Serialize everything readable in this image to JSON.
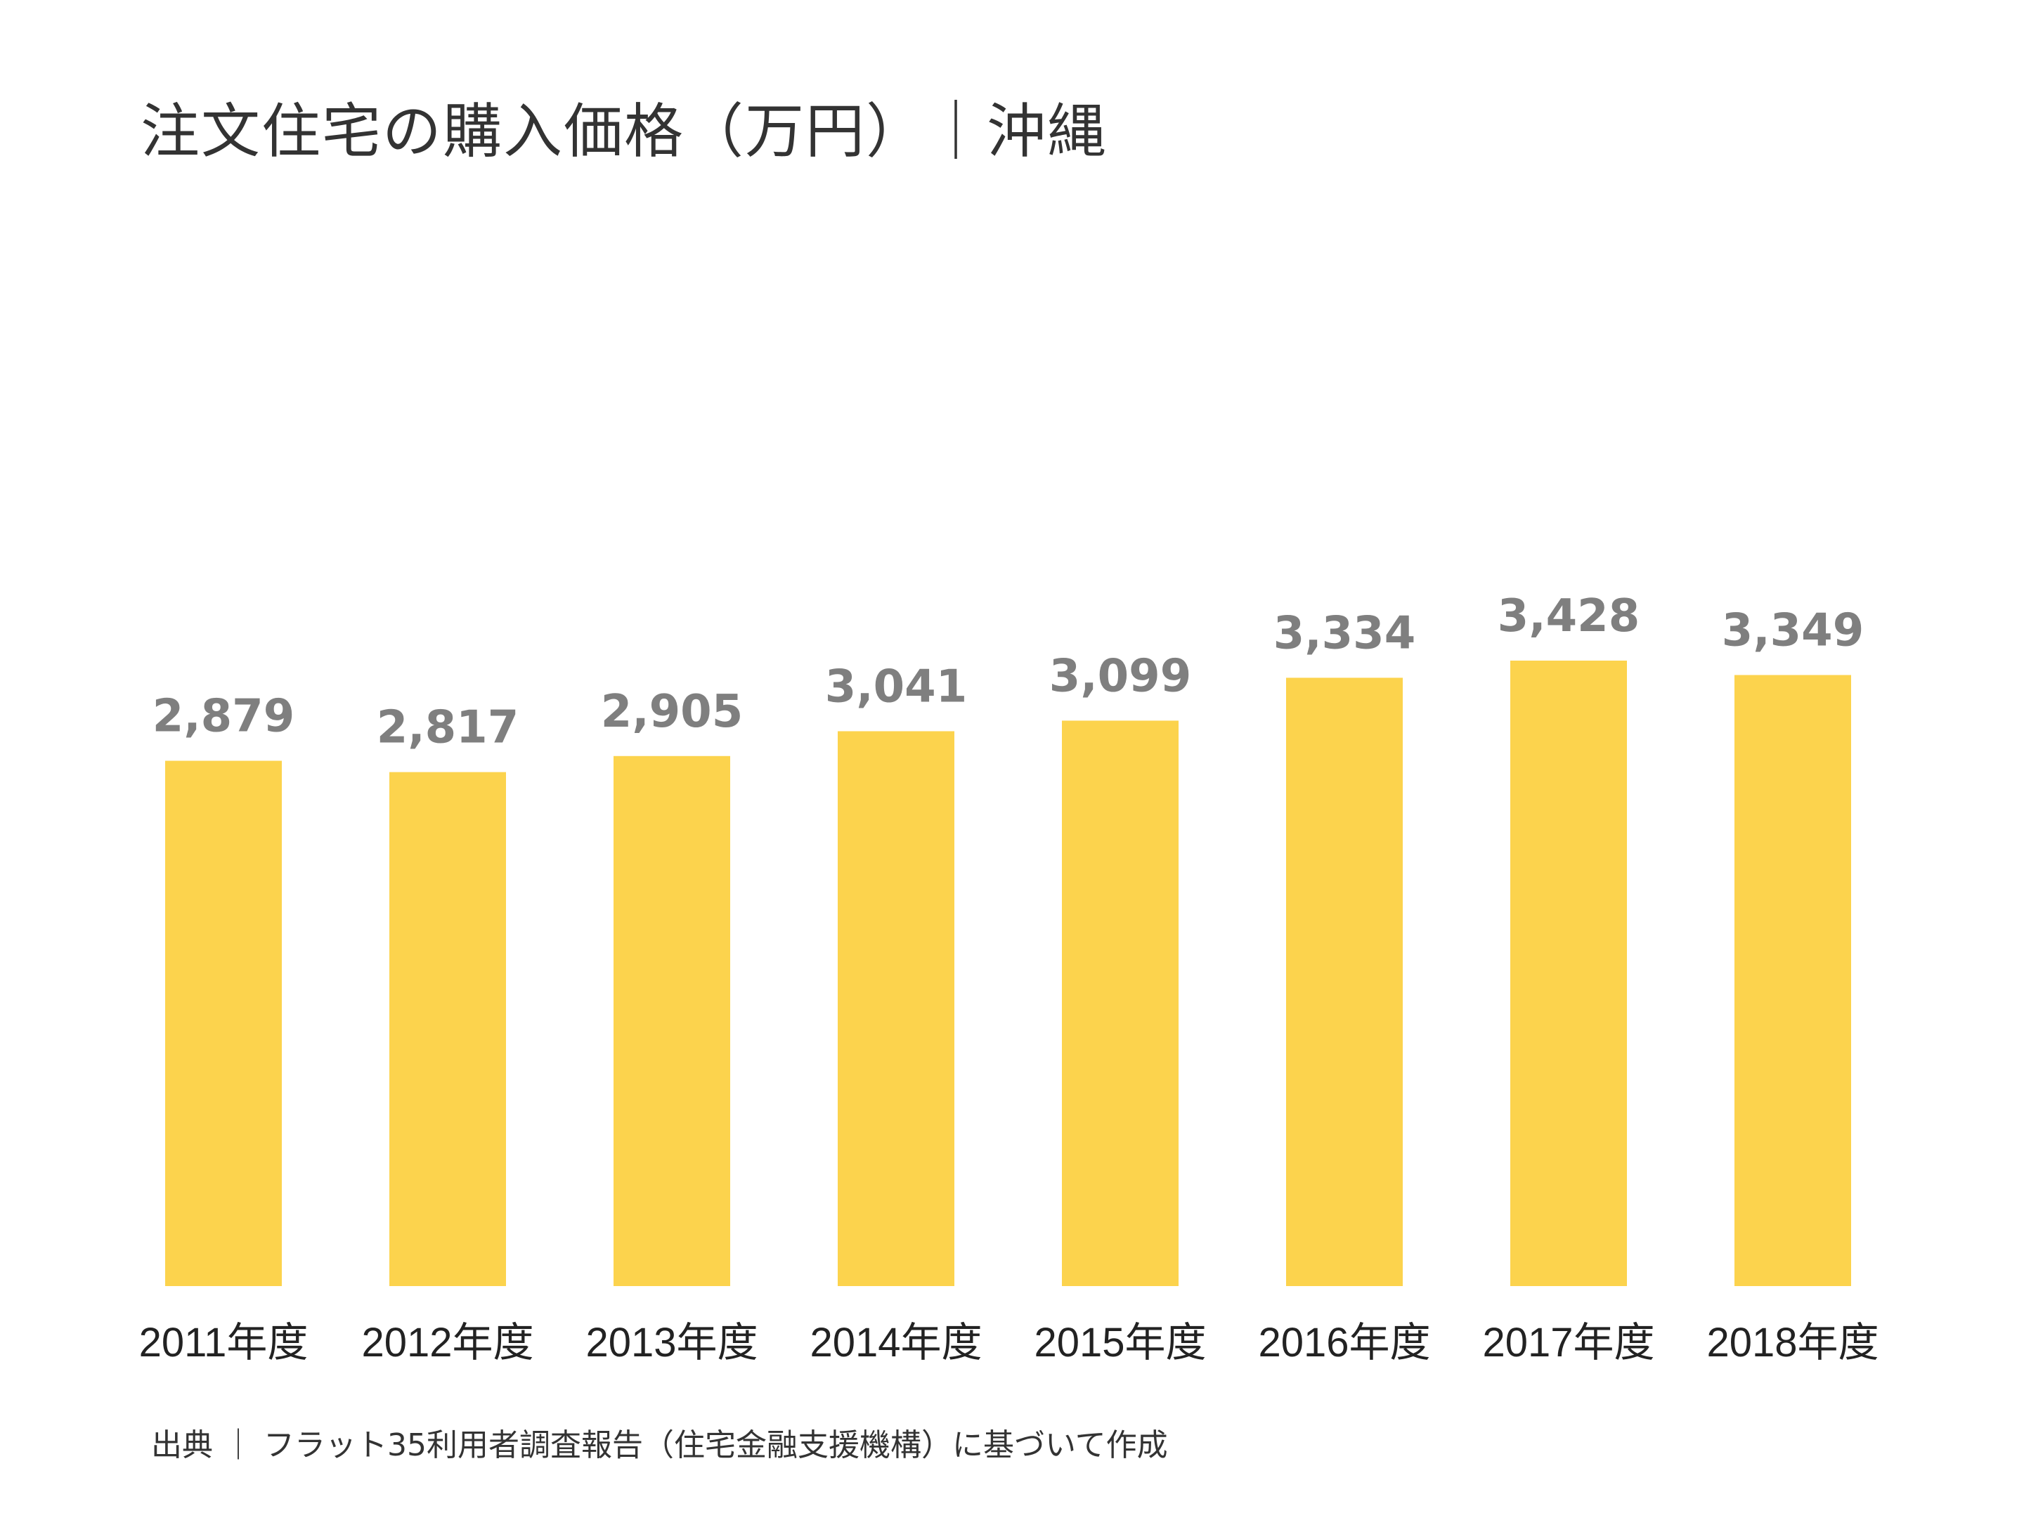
{
  "chart_data": {
    "type": "bar",
    "title": "注文住宅の購入価格（万円）｜沖縄",
    "categories": [
      "2011年度",
      "2012年度",
      "2013年度",
      "2014年度",
      "2015年度",
      "2016年度",
      "2017年度",
      "2018年度"
    ],
    "values": [
      2879,
      2817,
      2905,
      3041,
      3099,
      3334,
      3428,
      3349
    ],
    "value_labels": [
      "2,879",
      "2,817",
      "2,905",
      "3,041",
      "3,099",
      "3,334",
      "3,428",
      "3,349"
    ],
    "ylim": [
      0,
      3428
    ],
    "xlabel": "",
    "ylabel": "",
    "grid": false,
    "colors": {
      "bar": "#fcd34d",
      "value_label": "#7f7f7f"
    }
  },
  "source": "出典 ｜ フラット35利用者調査報告（住宅金融支援機構）に基づいて作成"
}
